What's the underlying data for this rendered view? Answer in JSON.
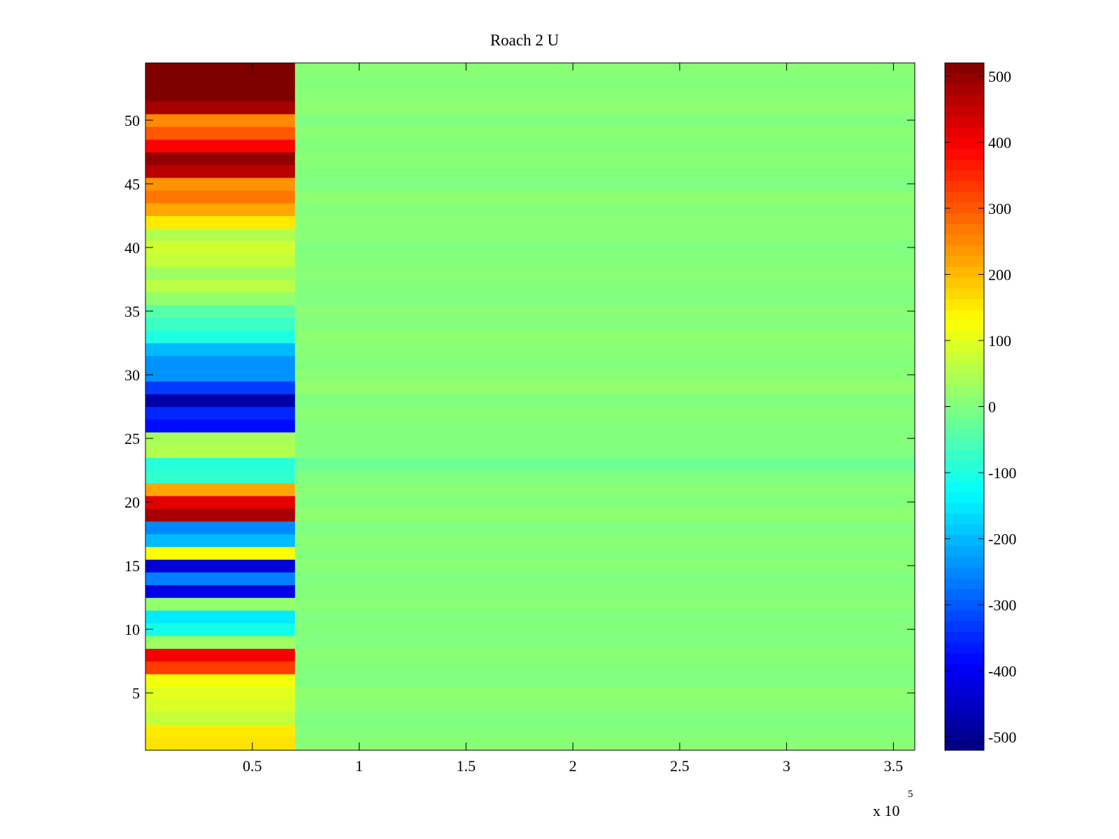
{
  "chart_data": {
    "type": "heatmap",
    "title": "Roach 2 U",
    "xlabel": "",
    "ylabel": "",
    "x_multiplier_label": "x 10",
    "x_multiplier_exponent": "5",
    "xlim": [
      0,
      360000
    ],
    "ylim": [
      0.5,
      54.5
    ],
    "x_ticks": [
      50000,
      100000,
      150000,
      200000,
      250000,
      300000,
      350000
    ],
    "x_tick_labels": [
      "0.5",
      "1",
      "1.5",
      "2",
      "2.5",
      "3",
      "3.5"
    ],
    "y_ticks": [
      5,
      10,
      15,
      20,
      25,
      30,
      35,
      40,
      45,
      50
    ],
    "y_tick_labels": [
      "5",
      "10",
      "15",
      "20",
      "25",
      "30",
      "35",
      "40",
      "45",
      "50"
    ],
    "colormap": "jet",
    "clim": [
      -520,
      520
    ],
    "colorbar_ticks": [
      500,
      400,
      300,
      200,
      100,
      0,
      -100,
      -200,
      -300,
      -400,
      -500
    ],
    "colorbar_tick_labels": [
      "500",
      "400",
      "300",
      "200",
      "100",
      "0",
      "-100",
      "-200",
      "-300",
      "-400",
      "-500"
    ],
    "grid": false,
    "segment_boundaries_x": [
      0,
      70000,
      360000
    ],
    "rows": [
      1,
      2,
      3,
      4,
      5,
      6,
      7,
      8,
      9,
      10,
      11,
      12,
      13,
      14,
      15,
      16,
      17,
      18,
      19,
      20,
      21,
      22,
      23,
      24,
      25,
      26,
      27,
      28,
      29,
      30,
      31,
      32,
      33,
      34,
      35,
      36,
      37,
      38,
      39,
      40,
      41,
      42,
      43,
      44,
      45,
      46,
      47,
      48,
      49,
      50,
      51,
      52,
      53,
      54
    ],
    "segment1_row_values": [
      160,
      150,
      70,
      90,
      100,
      120,
      330,
      400,
      30,
      -110,
      -150,
      20,
      -420,
      -260,
      -430,
      130,
      -200,
      -250,
      480,
      420,
      220,
      -80,
      -90,
      50,
      40,
      -380,
      -350,
      -480,
      -330,
      -240,
      -240,
      -200,
      -100,
      -70,
      -40,
      20,
      60,
      30,
      70,
      80,
      50,
      150,
      220,
      270,
      240,
      460,
      500,
      390,
      300,
      250,
      480,
      520,
      520,
      520
    ],
    "segment2_row_values": [
      10,
      5,
      0,
      10,
      15,
      0,
      5,
      10,
      0,
      5,
      0,
      10,
      5,
      0,
      10,
      5,
      10,
      0,
      15,
      5,
      10,
      0,
      -20,
      0,
      5,
      5,
      10,
      0,
      20,
      10,
      5,
      10,
      15,
      5,
      10,
      0,
      5,
      10,
      5,
      0,
      10,
      10,
      5,
      15,
      0,
      5,
      10,
      5,
      10,
      0,
      15,
      10,
      5,
      10
    ]
  }
}
